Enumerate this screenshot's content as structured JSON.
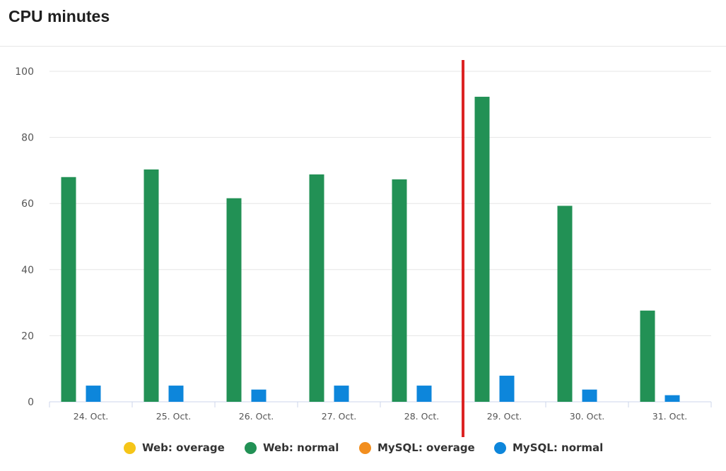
{
  "header": {
    "title": "CPU minutes"
  },
  "chart_data": {
    "type": "bar",
    "categories": [
      "24. Oct.",
      "25. Oct.",
      "26. Oct.",
      "27. Oct.",
      "28. Oct.",
      "29. Oct.",
      "30. Oct.",
      "31. Oct."
    ],
    "series": [
      {
        "name": "Web: overage",
        "color": "#f5c518",
        "values": [
          0,
          0,
          0,
          0,
          0,
          0,
          0,
          0
        ]
      },
      {
        "name": "Web: normal",
        "color": "#229155",
        "values": [
          68,
          70.3,
          61.6,
          68.8,
          67.3,
          92.3,
          59.3,
          27.6
        ]
      },
      {
        "name": "MySQL: overage",
        "color": "#f28e1e",
        "values": [
          0,
          0,
          0,
          0,
          0,
          0,
          0,
          0
        ]
      },
      {
        "name": "MySQL: normal",
        "color": "#0d86db",
        "values": [
          4.9,
          4.9,
          3.7,
          4.9,
          4.9,
          7.9,
          3.7,
          2
        ]
      }
    ],
    "y_ticks": [
      "0",
      "20",
      "40",
      "60",
      "80",
      "100"
    ],
    "ylim": [
      0,
      100
    ],
    "grid": true,
    "legend_position": "bottom",
    "marker": {
      "type": "vertical-line",
      "color": "#dc2323",
      "between": [
        "28. Oct.",
        "29. Oct."
      ]
    },
    "xlabel": "",
    "ylabel": ""
  }
}
